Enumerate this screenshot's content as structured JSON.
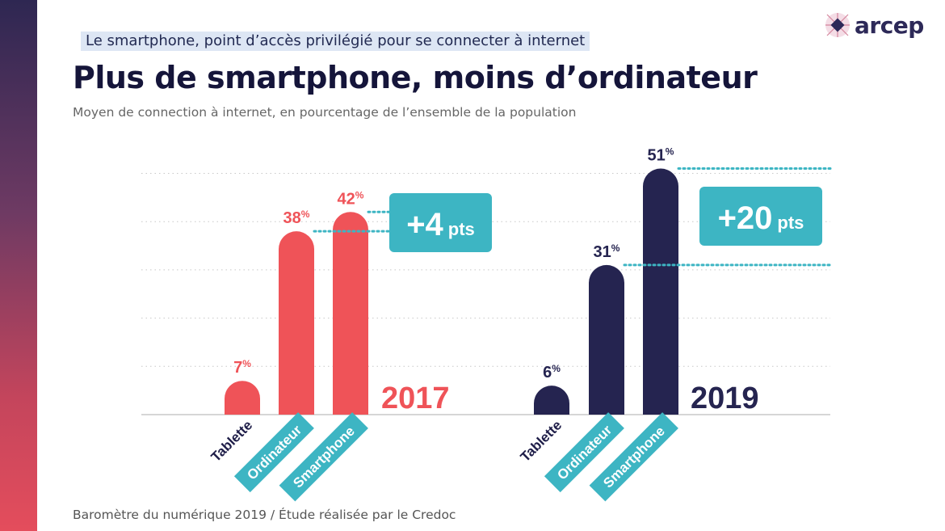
{
  "header": {
    "topline": "Le smartphone, point d’accès privilégié pour se connecter à internet",
    "title": "Plus de smartphone, moins d’ordinateur",
    "subtitle": "Moyen de connection à internet, en pourcentage de l’ensemble de la population"
  },
  "logo": {
    "text": "arcep"
  },
  "footer": {
    "source": "Baromètre du numérique 2019 / Étude réalisée par le Credoc"
  },
  "colors": {
    "y2017": "#ef5358",
    "y2019": "#252450",
    "teal": "#3db5c3",
    "grid": "#c8c8c8"
  },
  "chart_data": {
    "type": "bar",
    "unit": "%",
    "grid": true,
    "categories": [
      "Tablette",
      "Ordinateur",
      "Smartphone"
    ],
    "series": [
      {
        "name": "2017",
        "values": [
          7,
          38,
          42
        ],
        "delta_label": "+4",
        "delta_unit": "pts"
      },
      {
        "name": "2019",
        "values": [
          6,
          31,
          51
        ],
        "delta_label": "+20",
        "delta_unit": "pts"
      }
    ]
  }
}
